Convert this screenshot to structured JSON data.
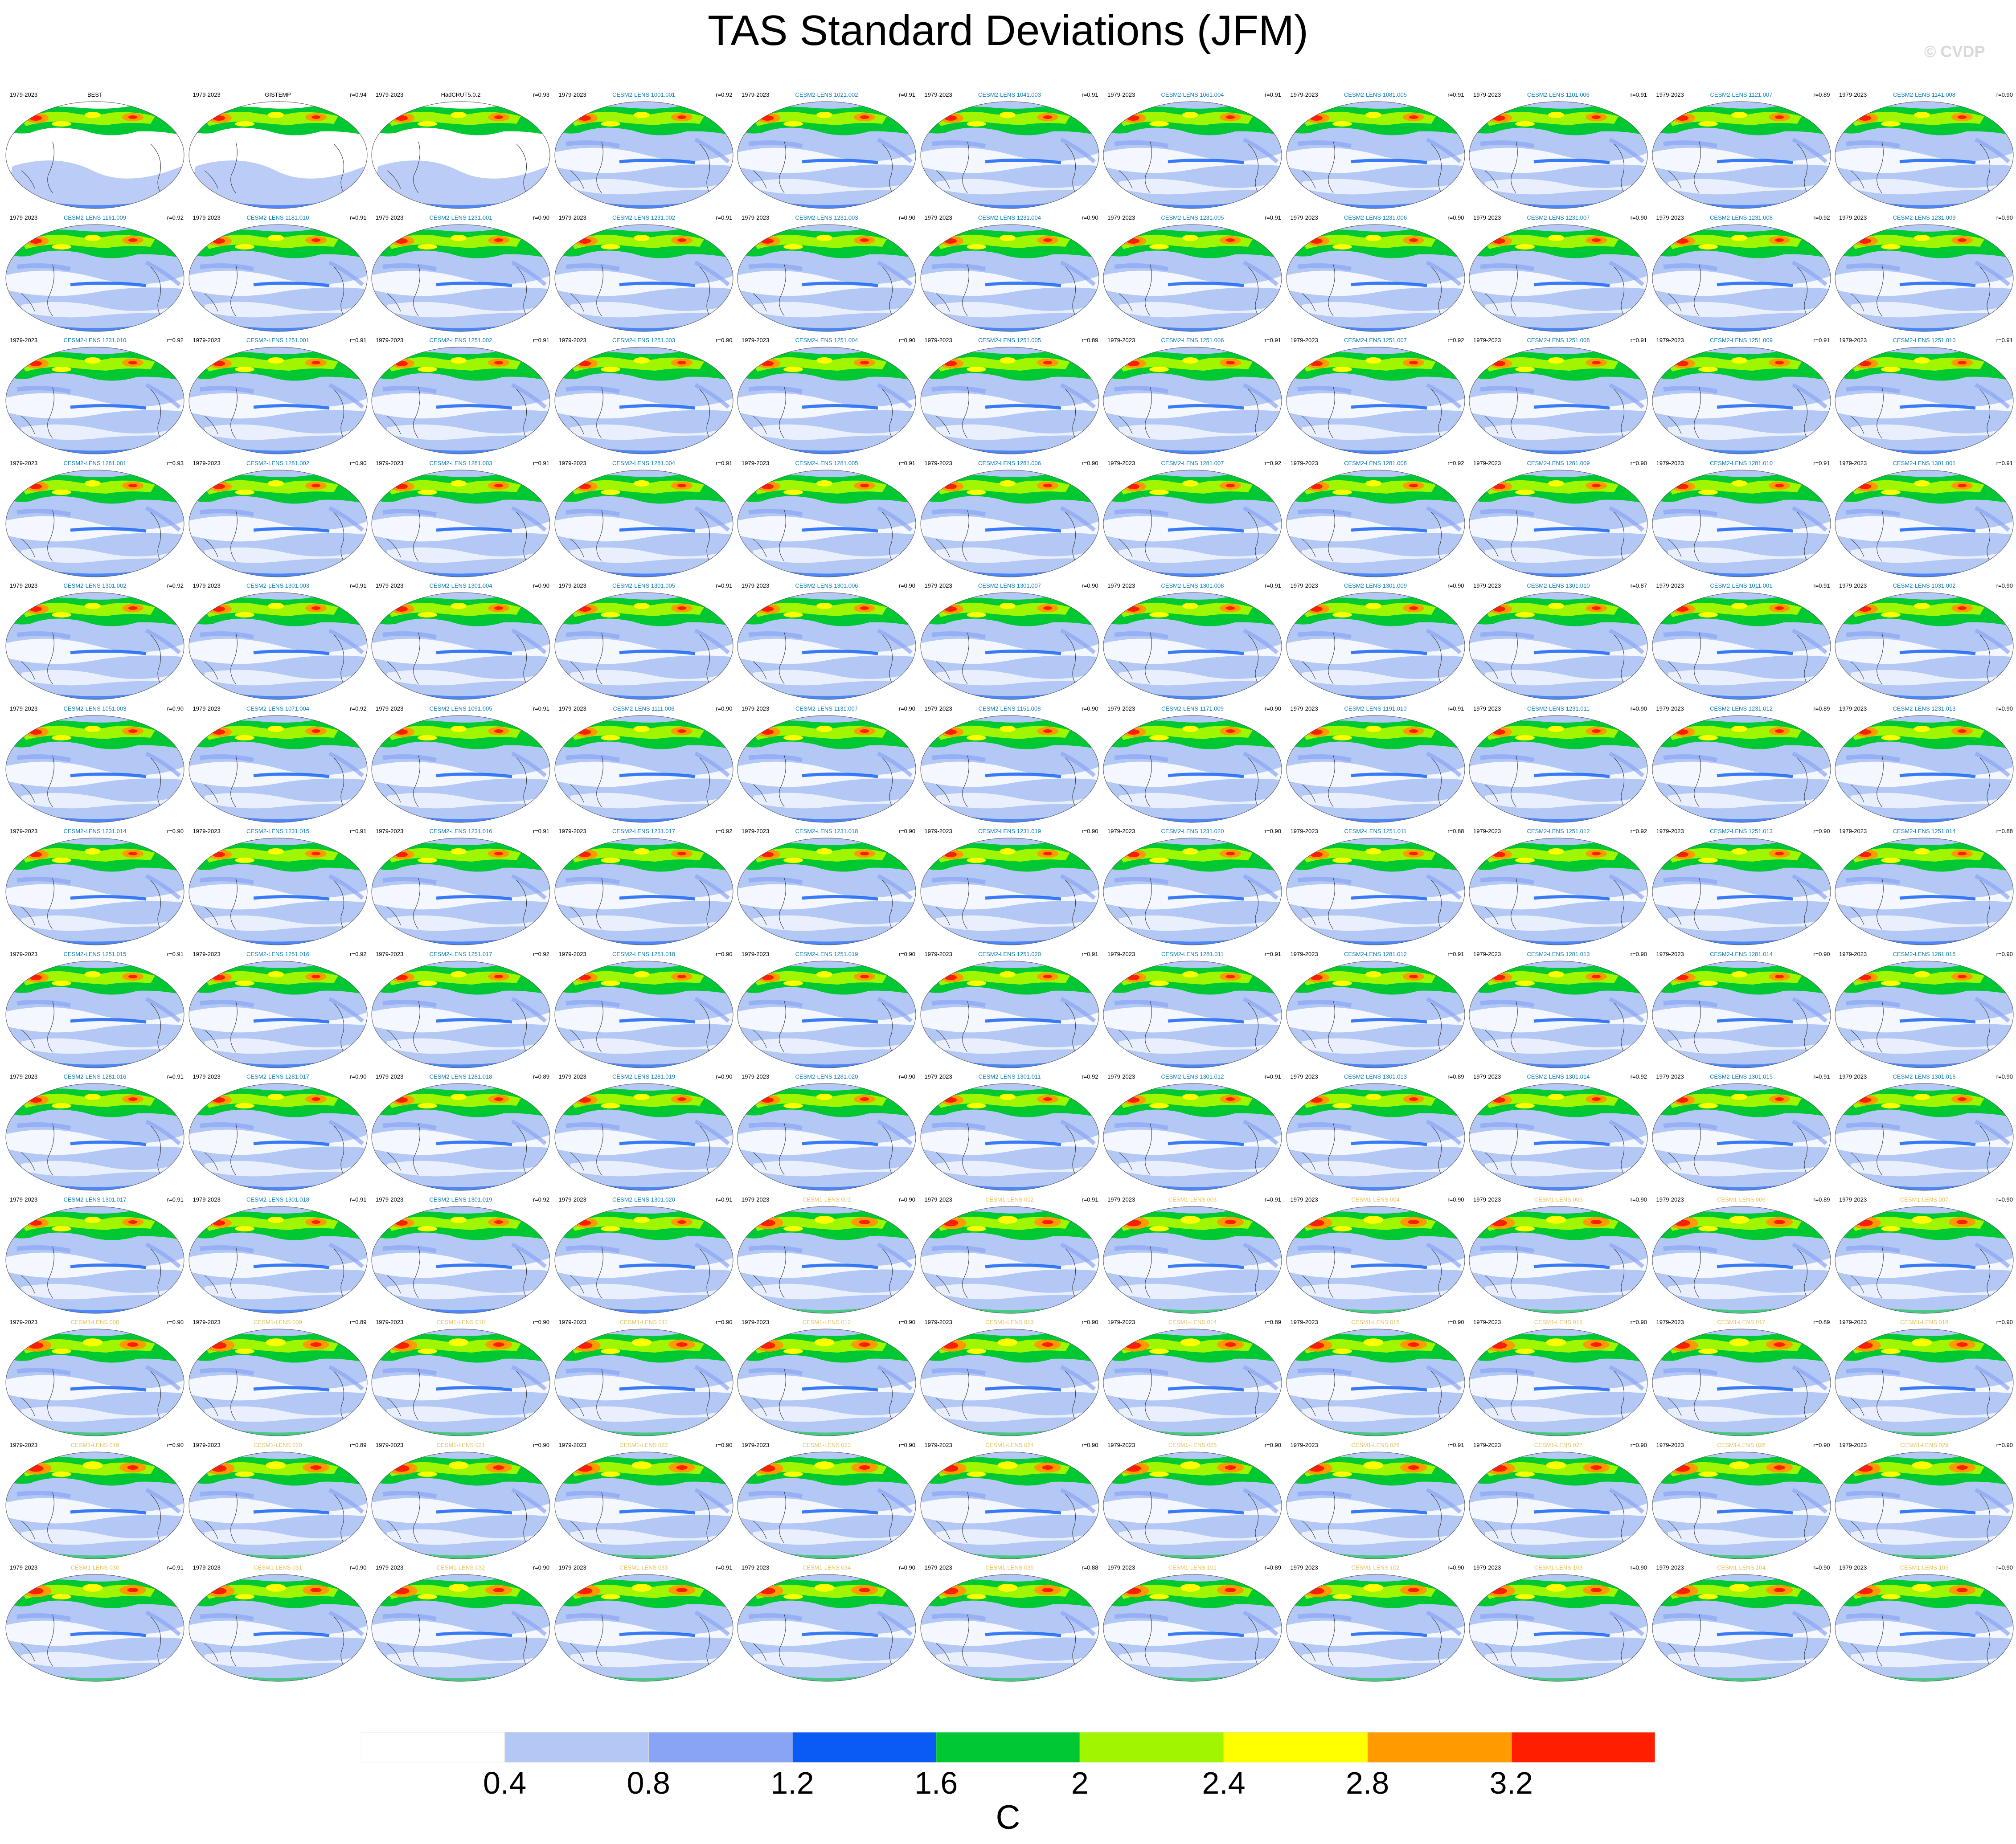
{
  "title": "TAS Standard Deviations (JFM)",
  "watermark": "© CVDP",
  "colorbar": {
    "colors": [
      "#ffffff",
      "#b4c8f5",
      "#8aa4f5",
      "#0a5af5",
      "#00c832",
      "#a0f500",
      "#ffff00",
      "#ff9b00",
      "#ff1e00"
    ],
    "tick_labels": [
      "0.4",
      "0.8",
      "1.2",
      "1.6",
      "2",
      "2.4",
      "2.8",
      "3.2"
    ],
    "units": "C"
  },
  "colors": {
    "observation_label": "#000000",
    "cesm2_label": "#0a7ab5",
    "cesm1_label": "#e6c05a"
  },
  "panels": [
    {
      "period": "1979-2023",
      "name": "BEST",
      "r": ""
    },
    {
      "period": "1979-2023",
      "name": "GISTEMP",
      "r": "r=0.94"
    },
    {
      "period": "1979-2023",
      "name": "HadCRUT5.0.2",
      "r": "r=0.93"
    },
    {
      "period": "1979-2023",
      "name": "CESM2-LENS 1001.001",
      "r": "r=0.92"
    },
    {
      "period": "1979-2023",
      "name": "CESM2-LENS 1021.002",
      "r": "r=0.91"
    },
    {
      "period": "1979-2023",
      "name": "CESM2-LENS 1041.003",
      "r": "r=0.91"
    },
    {
      "period": "1979-2023",
      "name": "CESM2-LENS 1061.004",
      "r": "r=0.91"
    },
    {
      "period": "1979-2023",
      "name": "CESM2-LENS 1081.005",
      "r": "r=0.91"
    },
    {
      "period": "1979-2023",
      "name": "CESM2-LENS 1101.006",
      "r": "r=0.91"
    },
    {
      "period": "1979-2023",
      "name": "CESM2-LENS 1121.007",
      "r": "r=0.89"
    },
    {
      "period": "1979-2023",
      "name": "CESM2-LENS 1141.008",
      "r": "r=0.90"
    },
    {
      "period": "1979-2023",
      "name": "CESM2-LENS 1161.009",
      "r": "r=0.92"
    },
    {
      "period": "1979-2023",
      "name": "CESM2-LENS 1181.010",
      "r": "r=0.91"
    },
    {
      "period": "1979-2023",
      "name": "CESM2-LENS 1231.001",
      "r": "r=0.90"
    },
    {
      "period": "1979-2023",
      "name": "CESM2-LENS 1231.002",
      "r": "r=0.91"
    },
    {
      "period": "1979-2023",
      "name": "CESM2-LENS 1231.003",
      "r": "r=0.90"
    },
    {
      "period": "1979-2023",
      "name": "CESM2-LENS 1231.004",
      "r": "r=0.90"
    },
    {
      "period": "1979-2023",
      "name": "CESM2-LENS 1231.005",
      "r": "r=0.91"
    },
    {
      "period": "1979-2023",
      "name": "CESM2-LENS 1231.006",
      "r": "r=0.90"
    },
    {
      "period": "1979-2023",
      "name": "CESM2-LENS 1231.007",
      "r": "r=0.90"
    },
    {
      "period": "1979-2023",
      "name": "CESM2-LENS 1231.008",
      "r": "r=0.92"
    },
    {
      "period": "1979-2023",
      "name": "CESM2-LENS 1231.009",
      "r": "r=0.90"
    },
    {
      "period": "1979-2023",
      "name": "CESM2-LENS 1231.010",
      "r": "r=0.92"
    },
    {
      "period": "1979-2023",
      "name": "CESM2-LENS 1251.001",
      "r": "r=0.91"
    },
    {
      "period": "1979-2023",
      "name": "CESM2-LENS 1251.002",
      "r": "r=0.91"
    },
    {
      "period": "1979-2023",
      "name": "CESM2-LENS 1251.003",
      "r": "r=0.90"
    },
    {
      "period": "1979-2023",
      "name": "CESM2-LENS 1251.004",
      "r": "r=0.90"
    },
    {
      "period": "1979-2023",
      "name": "CESM2-LENS 1251.005",
      "r": "r=0.89"
    },
    {
      "period": "1979-2023",
      "name": "CESM2-LENS 1251.006",
      "r": "r=0.91"
    },
    {
      "period": "1979-2023",
      "name": "CESM2-LENS 1251.007",
      "r": "r=0.92"
    },
    {
      "period": "1979-2023",
      "name": "CESM2-LENS 1251.008",
      "r": "r=0.91"
    },
    {
      "period": "1979-2023",
      "name": "CESM2-LENS 1251.009",
      "r": "r=0.91"
    },
    {
      "period": "1979-2023",
      "name": "CESM2-LENS 1251.010",
      "r": "r=0.91"
    },
    {
      "period": "1979-2023",
      "name": "CESM2-LENS 1281.001",
      "r": "r=0.93"
    },
    {
      "period": "1979-2023",
      "name": "CESM2-LENS 1281.002",
      "r": "r=0.90"
    },
    {
      "period": "1979-2023",
      "name": "CESM2-LENS 1281.003",
      "r": "r=0.91"
    },
    {
      "period": "1979-2023",
      "name": "CESM2-LENS 1281.004",
      "r": "r=0.91"
    },
    {
      "period": "1979-2023",
      "name": "CESM2-LENS 1281.005",
      "r": "r=0.91"
    },
    {
      "period": "1979-2023",
      "name": "CESM2-LENS 1281.006",
      "r": "r=0.90"
    },
    {
      "period": "1979-2023",
      "name": "CESM2-LENS 1281.007",
      "r": "r=0.92"
    },
    {
      "period": "1979-2023",
      "name": "CESM2-LENS 1281.008",
      "r": "r=0.92"
    },
    {
      "period": "1979-2023",
      "name": "CESM2-LENS 1281.009",
      "r": "r=0.90"
    },
    {
      "period": "1979-2023",
      "name": "CESM2-LENS 1281.010",
      "r": "r=0.91"
    },
    {
      "period": "1979-2023",
      "name": "CESM2-LENS 1301.001",
      "r": "r=0.91"
    },
    {
      "period": "1979-2023",
      "name": "CESM2-LENS 1301.002",
      "r": "r=0.92"
    },
    {
      "period": "1979-2023",
      "name": "CESM2-LENS 1301.003",
      "r": "r=0.91"
    },
    {
      "period": "1979-2023",
      "name": "CESM2-LENS 1301.004",
      "r": "r=0.90"
    },
    {
      "period": "1979-2023",
      "name": "CESM2-LENS 1301.005",
      "r": "r=0.91"
    },
    {
      "period": "1979-2023",
      "name": "CESM2-LENS 1301.006",
      "r": "r=0.90"
    },
    {
      "period": "1979-2023",
      "name": "CESM2-LENS 1301.007",
      "r": "r=0.90"
    },
    {
      "period": "1979-2023",
      "name": "CESM2-LENS 1301.008",
      "r": "r=0.91"
    },
    {
      "period": "1979-2023",
      "name": "CESM2-LENS 1301.009",
      "r": "r=0.90"
    },
    {
      "period": "1979-2023",
      "name": "CESM2-LENS 1301.010",
      "r": "r=0.87"
    },
    {
      "period": "1979-2023",
      "name": "CESM2-LENS 1011.001",
      "r": "r=0.91"
    },
    {
      "period": "1979-2023",
      "name": "CESM2-LENS 1031.002",
      "r": "r=0.90"
    },
    {
      "period": "1979-2023",
      "name": "CESM2-LENS 1051.003",
      "r": "r=0.90"
    },
    {
      "period": "1979-2023",
      "name": "CESM2-LENS 1071.004",
      "r": "r=0.92"
    },
    {
      "period": "1979-2023",
      "name": "CESM2-LENS 1091.005",
      "r": "r=0.91"
    },
    {
      "period": "1979-2023",
      "name": "CESM2-LENS 1111.006",
      "r": "r=0.90"
    },
    {
      "period": "1979-2023",
      "name": "CESM2-LENS 1131.007",
      "r": "r=0.90"
    },
    {
      "period": "1979-2023",
      "name": "CESM2-LENS 1151.008",
      "r": "r=0.90"
    },
    {
      "period": "1979-2023",
      "name": "CESM2-LENS 1171.009",
      "r": "r=0.90"
    },
    {
      "period": "1979-2023",
      "name": "CESM2-LENS 1191.010",
      "r": "r=0.91"
    },
    {
      "period": "1979-2023",
      "name": "CESM2-LENS 1231.011",
      "r": "r=0.90"
    },
    {
      "period": "1979-2023",
      "name": "CESM2-LENS 1231.012",
      "r": "r=0.89"
    },
    {
      "period": "1979-2023",
      "name": "CESM2-LENS 1231.013",
      "r": "r=0.90"
    },
    {
      "period": "1979-2023",
      "name": "CESM2-LENS 1231.014",
      "r": "r=0.90"
    },
    {
      "period": "1979-2023",
      "name": "CESM2-LENS 1231.015",
      "r": "r=0.91"
    },
    {
      "period": "1979-2023",
      "name": "CESM2-LENS 1231.016",
      "r": "r=0.91"
    },
    {
      "period": "1979-2023",
      "name": "CESM2-LENS 1231.017",
      "r": "r=0.92"
    },
    {
      "period": "1979-2023",
      "name": "CESM2-LENS 1231.018",
      "r": "r=0.90"
    },
    {
      "period": "1979-2023",
      "name": "CESM2-LENS 1231.019",
      "r": "r=0.90"
    },
    {
      "period": "1979-2023",
      "name": "CESM2-LENS 1231.020",
      "r": "r=0.90"
    },
    {
      "period": "1979-2023",
      "name": "CESM2-LENS 1251.011",
      "r": "r=0.88"
    },
    {
      "period": "1979-2023",
      "name": "CESM2-LENS 1251.012",
      "r": "r=0.92"
    },
    {
      "period": "1979-2023",
      "name": "CESM2-LENS 1251.013",
      "r": "r=0.90"
    },
    {
      "period": "1979-2023",
      "name": "CESM2-LENS 1251.014",
      "r": "r=0.88"
    },
    {
      "period": "1979-2023",
      "name": "CESM2-LENS 1251.015",
      "r": "r=0.91"
    },
    {
      "period": "1979-2023",
      "name": "CESM2-LENS 1251.016",
      "r": "r=0.92"
    },
    {
      "period": "1979-2023",
      "name": "CESM2-LENS 1251.017",
      "r": "r=0.92"
    },
    {
      "period": "1979-2023",
      "name": "CESM2-LENS 1251.018",
      "r": "r=0.90"
    },
    {
      "period": "1979-2023",
      "name": "CESM2-LENS 1251.019",
      "r": "r=0.90"
    },
    {
      "period": "1979-2023",
      "name": "CESM2-LENS 1251.020",
      "r": "r=0.91"
    },
    {
      "period": "1979-2023",
      "name": "CESM2-LENS 1281.011",
      "r": "r=0.91"
    },
    {
      "period": "1979-2023",
      "name": "CESM2-LENS 1281.012",
      "r": "r=0.91"
    },
    {
      "period": "1979-2023",
      "name": "CESM2-LENS 1281.013",
      "r": "r=0.90"
    },
    {
      "period": "1979-2023",
      "name": "CESM2-LENS 1281.014",
      "r": "r=0.90"
    },
    {
      "period": "1979-2023",
      "name": "CESM2-LENS 1281.015",
      "r": "r=0.90"
    },
    {
      "period": "1979-2023",
      "name": "CESM2-LENS 1281.016",
      "r": "r=0.91"
    },
    {
      "period": "1979-2023",
      "name": "CESM2-LENS 1281.017",
      "r": "r=0.90"
    },
    {
      "period": "1979-2023",
      "name": "CESM2-LENS 1281.018",
      "r": "r=0.89"
    },
    {
      "period": "1979-2023",
      "name": "CESM2-LENS 1281.019",
      "r": "r=0.90"
    },
    {
      "period": "1979-2023",
      "name": "CESM2-LENS 1281.020",
      "r": "r=0.90"
    },
    {
      "period": "1979-2023",
      "name": "CESM2-LENS 1301.011",
      "r": "r=0.92"
    },
    {
      "period": "1979-2023",
      "name": "CESM2-LENS 1301.012",
      "r": "r=0.91"
    },
    {
      "period": "1979-2023",
      "name": "CESM2-LENS 1301.013",
      "r": "r=0.89"
    },
    {
      "period": "1979-2023",
      "name": "CESM2-LENS 1301.014",
      "r": "r=0.92"
    },
    {
      "period": "1979-2023",
      "name": "CESM2-LENS 1301.015",
      "r": "r=0.91"
    },
    {
      "period": "1979-2023",
      "name": "CESM2-LENS 1301.016",
      "r": "r=0.90"
    },
    {
      "period": "1979-2023",
      "name": "CESM2-LENS 1301.017",
      "r": "r=0.91"
    },
    {
      "period": "1979-2023",
      "name": "CESM2-LENS 1301.018",
      "r": "r=0.91"
    },
    {
      "period": "1979-2023",
      "name": "CESM2-LENS 1301.019",
      "r": "r=0.92"
    },
    {
      "period": "1979-2023",
      "name": "CESM2-LENS 1301.020",
      "r": "r=0.91"
    },
    {
      "period": "1979-2023",
      "name": "CESM1-LENS 001",
      "r": "r=0.90"
    },
    {
      "period": "1979-2023",
      "name": "CESM1-LENS 002",
      "r": "r=0.91"
    },
    {
      "period": "1979-2023",
      "name": "CESM1-LENS 003",
      "r": "r=0.91"
    },
    {
      "period": "1979-2023",
      "name": "CESM1-LENS 004",
      "r": "r=0.90"
    },
    {
      "period": "1979-2023",
      "name": "CESM1-LENS 005",
      "r": "r=0.90"
    },
    {
      "period": "1979-2023",
      "name": "CESM1-LENS 006",
      "r": "r=0.89"
    },
    {
      "period": "1979-2023",
      "name": "CESM1-LENS 007",
      "r": "r=0.90"
    },
    {
      "period": "1979-2023",
      "name": "CESM1-LENS 008",
      "r": "r=0.90"
    },
    {
      "period": "1979-2023",
      "name": "CESM1-LENS 009",
      "r": "r=0.89"
    },
    {
      "period": "1979-2023",
      "name": "CESM1-LENS 010",
      "r": "r=0.90"
    },
    {
      "period": "1979-2023",
      "name": "CESM1-LENS 011",
      "r": "r=0.90"
    },
    {
      "period": "1979-2023",
      "name": "CESM1-LENS 012",
      "r": "r=0.90"
    },
    {
      "period": "1979-2023",
      "name": "CESM1-LENS 013",
      "r": "r=0.90"
    },
    {
      "period": "1979-2023",
      "name": "CESM1-LENS 014",
      "r": "r=0.89"
    },
    {
      "period": "1979-2023",
      "name": "CESM1-LENS 015",
      "r": "r=0.90"
    },
    {
      "period": "1979-2023",
      "name": "CESM1-LENS 016",
      "r": "r=0.90"
    },
    {
      "period": "1979-2023",
      "name": "CESM1-LENS 017",
      "r": "r=0.89"
    },
    {
      "period": "1979-2023",
      "name": "CESM1-LENS 018",
      "r": "r=0.90"
    },
    {
      "period": "1979-2023",
      "name": "CESM1-LENS 019",
      "r": "r=0.90"
    },
    {
      "period": "1979-2023",
      "name": "CESM1-LENS 020",
      "r": "r=0.89"
    },
    {
      "period": "1979-2023",
      "name": "CESM1-LENS 021",
      "r": "r=0.90"
    },
    {
      "period": "1979-2023",
      "name": "CESM1-LENS 022",
      "r": "r=0.90"
    },
    {
      "period": "1979-2023",
      "name": "CESM1-LENS 023",
      "r": "r=0.90"
    },
    {
      "period": "1979-2023",
      "name": "CESM1-LENS 024",
      "r": "r=0.90"
    },
    {
      "period": "1979-2023",
      "name": "CESM1-LENS 025",
      "r": "r=0.90"
    },
    {
      "period": "1979-2023",
      "name": "CESM1-LENS 026",
      "r": "r=0.91"
    },
    {
      "period": "1979-2023",
      "name": "CESM1-LENS 027",
      "r": "r=0.90"
    },
    {
      "period": "1979-2023",
      "name": "CESM1-LENS 028",
      "r": "r=0.90"
    },
    {
      "period": "1979-2023",
      "name": "CESM1-LENS 029",
      "r": "r=0.90"
    },
    {
      "period": "1979-2023",
      "name": "CESM1-LENS 030",
      "r": "r=0.91"
    },
    {
      "period": "1979-2023",
      "name": "CESM1-LENS 031",
      "r": "r=0.90"
    },
    {
      "period": "1979-2023",
      "name": "CESM1-LENS 032",
      "r": "r=0.90"
    },
    {
      "period": "1979-2023",
      "name": "CESM1-LENS 033",
      "r": "r=0.91"
    },
    {
      "period": "1979-2023",
      "name": "CESM1-LENS 034",
      "r": "r=0.90"
    },
    {
      "period": "1979-2023",
      "name": "CESM1-LENS 035",
      "r": "r=0.88"
    },
    {
      "period": "1979-2023",
      "name": "CESM1-LENS 101",
      "r": "r=0.89"
    },
    {
      "period": "1979-2023",
      "name": "CESM1-LENS 102",
      "r": "r=0.90"
    },
    {
      "period": "1979-2023",
      "name": "CESM1-LENS 103",
      "r": "r=0.90"
    },
    {
      "period": "1979-2023",
      "name": "CESM1-LENS 104",
      "r": "r=0.90"
    },
    {
      "period": "1979-2023",
      "name": "CESM1-LENS 105",
      "r": "r=0.90"
    }
  ]
}
